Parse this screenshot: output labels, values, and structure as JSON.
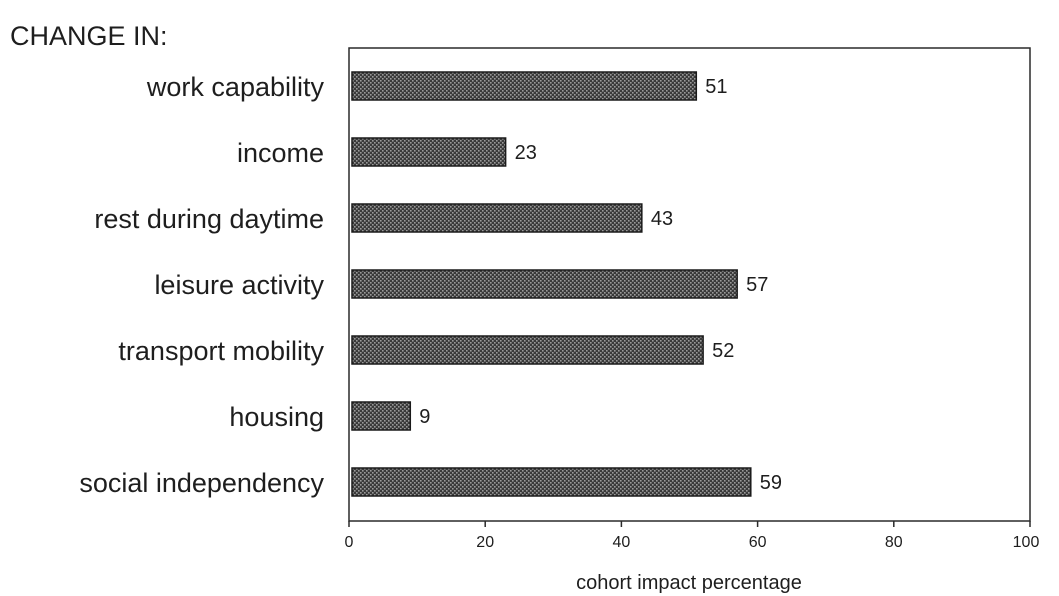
{
  "chart_data": {
    "type": "bar",
    "orientation": "horizontal",
    "heading": "CHANGE IN:",
    "categories": [
      "work capability",
      "income",
      "rest during daytime",
      "leisure activity",
      "transport mobility",
      "housing",
      "social independency"
    ],
    "values": [
      51,
      23,
      43,
      57,
      52,
      9,
      59
    ],
    "xlabel": "cohort impact percentage",
    "ylabel": "",
    "xlim": [
      0,
      100
    ],
    "xticks": [
      0,
      20,
      40,
      60,
      80,
      100
    ],
    "grid": false,
    "legend": "none",
    "bar_color": "#3a3a3a",
    "bar_pattern_color": "#9a9a9a"
  }
}
